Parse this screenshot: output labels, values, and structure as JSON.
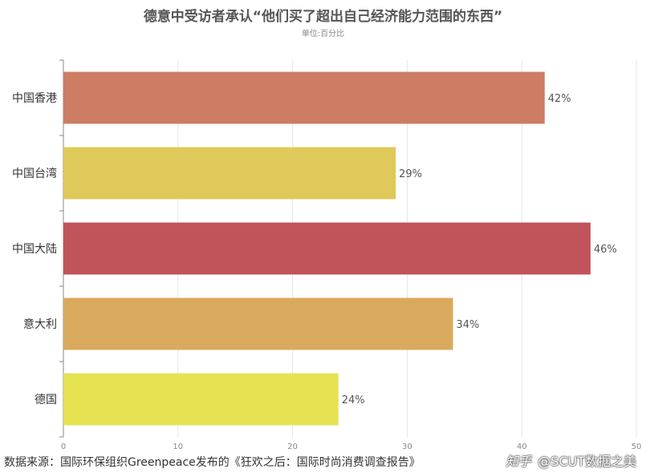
{
  "title": "德意中受访者承认“他们买了超出自己经济能力范围的东西”",
  "subtitle": "单位:百分比",
  "source": "数据来源：国际环保组织Greenpeace发布的《狂欢之后：国际时尚消费调查报告》",
  "watermark": {
    "logo": "知乎",
    "handle": "@SCUT数据之美"
  },
  "chart_data": {
    "type": "bar",
    "orientation": "horizontal",
    "categories": [
      "中国香港",
      "中国台湾",
      "中国大陆",
      "意大利",
      "德国"
    ],
    "values": [
      42,
      29,
      46,
      34,
      24
    ],
    "value_labels": [
      "42%",
      "29%",
      "46%",
      "34%",
      "24%"
    ],
    "colors": [
      "#cc7d63",
      "#dfc95a",
      "#c1545a",
      "#d9aa5d",
      "#e6e252"
    ],
    "xlim": [
      0,
      50
    ],
    "xticks": [
      0,
      10,
      20,
      30,
      40,
      50
    ],
    "grid": true,
    "legend": false
  }
}
